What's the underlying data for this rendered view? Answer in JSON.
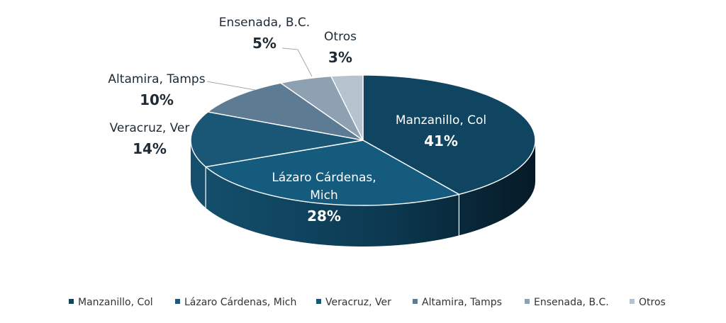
{
  "chart_data": {
    "type": "pie",
    "is_3d": true,
    "title": "",
    "legend_position": "bottom",
    "slices": [
      {
        "name": "Manzanillo, Col",
        "label_lines": [
          "Manzanillo, Col"
        ],
        "value": 41,
        "label": "41%",
        "color": "#0f4560",
        "label_color": "#ffffff"
      },
      {
        "name": "Lázaro Cárdenas, Mich",
        "label_lines": [
          "Lázaro Cárdenas,",
          "Mich"
        ],
        "value": 28,
        "label": "28%",
        "color": "#155b7e",
        "label_color": "#ffffff"
      },
      {
        "name": "Veracruz, Ver",
        "label_lines": [
          "Veracruz, Ver"
        ],
        "value": 14,
        "label": "14%",
        "color": "#1a5776",
        "label_color": "#1e2a36"
      },
      {
        "name": "Altamira, Tamps",
        "label_lines": [
          "Altamira, Tamps"
        ],
        "value": 10,
        "label": "10%",
        "color": "#5d7b92",
        "label_color": "#1e2a36"
      },
      {
        "name": "Ensenada, B.C.",
        "label_lines": [
          "Ensenada, B.C."
        ],
        "value": 5,
        "label": "5%",
        "color": "#8ea1b2",
        "label_color": "#1e2a36"
      },
      {
        "name": "Otros",
        "label_lines": [
          "Otros"
        ],
        "value": 3,
        "label": "3%",
        "color": "#b6c3cf",
        "label_color": "#1e2a36"
      }
    ]
  }
}
